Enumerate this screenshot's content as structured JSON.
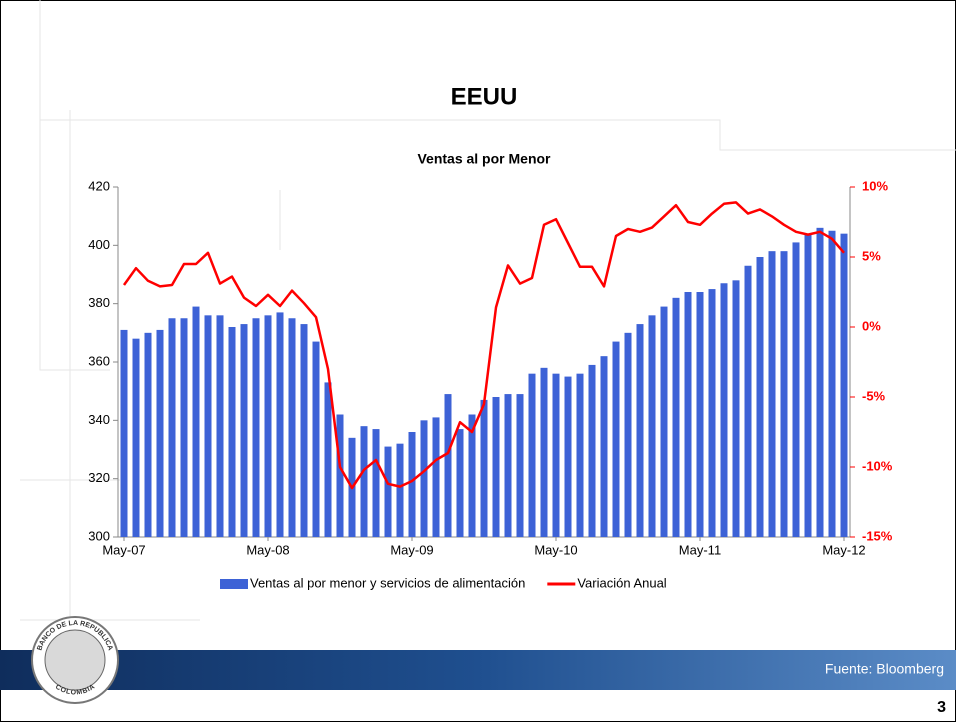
{
  "slide": {
    "title": "EEUU",
    "source": "Fuente: Bloomberg",
    "page_number": 3,
    "logo": {
      "top": "BANCO DE LA REPUBLICA",
      "bottom": "COLOMBIA"
    }
  },
  "chart_data": {
    "type": "combo",
    "title": "Ventas al por Menor",
    "categories": [
      "May-07",
      null,
      null,
      null,
      null,
      null,
      null,
      null,
      null,
      null,
      null,
      null,
      "May-08",
      null,
      null,
      null,
      null,
      null,
      null,
      null,
      null,
      null,
      null,
      null,
      "May-09",
      null,
      null,
      null,
      null,
      null,
      null,
      null,
      null,
      null,
      null,
      null,
      "May-10",
      null,
      null,
      null,
      null,
      null,
      null,
      null,
      null,
      null,
      null,
      null,
      "May-11",
      null,
      null,
      null,
      null,
      null,
      null,
      null,
      null,
      null,
      null,
      null,
      "May-12"
    ],
    "series": [
      {
        "name": "Ventas al por menor y servicios de alimentación",
        "type": "bar",
        "color": "#3d62d6",
        "values": [
          371,
          368,
          370,
          371,
          375,
          375,
          379,
          376,
          376,
          372,
          373,
          375,
          376,
          377,
          375,
          373,
          367,
          353,
          342,
          334,
          338,
          337,
          331,
          332,
          336,
          340,
          341,
          349,
          337,
          342,
          347,
          348,
          349,
          349,
          356,
          358,
          356,
          355,
          356,
          359,
          362,
          367,
          370,
          373,
          376,
          379,
          382,
          384,
          384,
          385,
          387,
          388,
          393,
          396,
          398,
          398,
          401,
          404,
          406,
          405,
          404
        ]
      },
      {
        "name": "Variación Anual",
        "type": "line",
        "color": "#ff0000",
        "axis": "y2",
        "values": [
          3.0,
          4.2,
          3.3,
          2.9,
          3.0,
          4.5,
          4.5,
          5.3,
          3.1,
          3.6,
          2.1,
          1.5,
          2.3,
          1.5,
          2.6,
          1.7,
          0.7,
          -3,
          -10,
          -11.5,
          -10.2,
          -9.5,
          -11.2,
          -11.4,
          -11,
          -10.3,
          -9.5,
          -9,
          -6.8,
          -7.5,
          -5.5,
          1.4,
          4.4,
          3.1,
          3.5,
          7.3,
          7.7,
          6,
          4.3,
          4.3,
          2.9,
          6.5,
          7,
          6.8,
          7.1,
          7.9,
          8.7,
          7.5,
          7.3,
          8.1,
          8.8,
          8.9,
          8.1,
          8.4,
          7.9,
          7.3,
          6.8,
          6.6,
          6.8,
          6.3,
          5.3
        ]
      }
    ],
    "ylim": [
      300,
      420
    ],
    "yticks": [
      300,
      320,
      340,
      360,
      380,
      400,
      420
    ],
    "y2lim": [
      -15,
      10
    ],
    "y2ticks": [
      {
        "value": -15,
        "label": "-15%"
      },
      {
        "value": -10,
        "label": "-10%"
      },
      {
        "value": -5,
        "label": "-5%"
      },
      {
        "value": 0,
        "label": "0%"
      },
      {
        "value": 5,
        "label": "5%"
      },
      {
        "value": 10,
        "label": "10%"
      }
    ],
    "y2color": "#ff0000",
    "grid": false,
    "legend": "bottom"
  }
}
